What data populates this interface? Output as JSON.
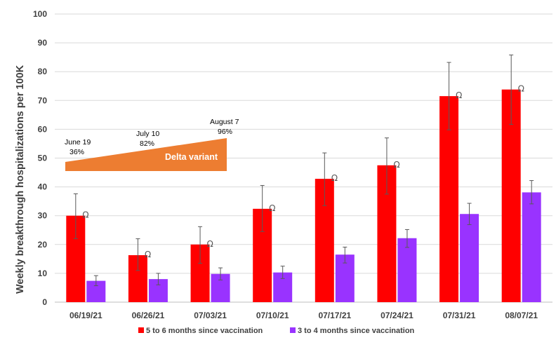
{
  "chart_data": {
    "type": "bar",
    "title": "",
    "xlabel": "",
    "ylabel": "Weekly breakthrough hospitalizations per 100K",
    "ylim": [
      0,
      100
    ],
    "yticks": [
      "0",
      "10",
      "20",
      "30",
      "40",
      "50",
      "60",
      "70",
      "80",
      "90",
      "100"
    ],
    "grid": true,
    "legend_position": "bottom",
    "categories": [
      "06/19/21",
      "06/26/21",
      "07/03/21",
      "07/10/21",
      "07/17/21",
      "07/24/21",
      "07/31/21",
      "08/07/21"
    ],
    "series": [
      {
        "name": "5 to 6 months since vaccination",
        "color": "#ff0000",
        "values": [
          30.0,
          16.3,
          20.0,
          32.4,
          42.8,
          47.5,
          71.5,
          73.8
        ],
        "error_upper": [
          37.6,
          22.0,
          26.2,
          40.5,
          51.8,
          57.0,
          83.2,
          85.8
        ],
        "error_lower": [
          22.0,
          11.0,
          13.5,
          24.5,
          33.5,
          37.5,
          59.8,
          61.7
        ]
      },
      {
        "name": "3 to 4 months since vaccination",
        "color": "#9933ff",
        "values": [
          7.4,
          8.0,
          9.8,
          10.3,
          16.5,
          22.2,
          30.6,
          38.1
        ],
        "error_upper": [
          9.2,
          10.0,
          11.9,
          12.5,
          19.1,
          25.2,
          34.3,
          42.2
        ],
        "error_lower": [
          5.7,
          6.0,
          7.7,
          8.2,
          13.6,
          19.0,
          26.9,
          34.1
        ]
      }
    ],
    "annotations": {
      "band_label": "Delta variant",
      "band_color": "#ed7d31",
      "points": [
        {
          "date": "June 19",
          "pct": "36%"
        },
        {
          "date": "July 10",
          "pct": "82%"
        },
        {
          "date": "August 7",
          "pct": "96%"
        }
      ],
      "marker_symbol": "Ω"
    }
  }
}
